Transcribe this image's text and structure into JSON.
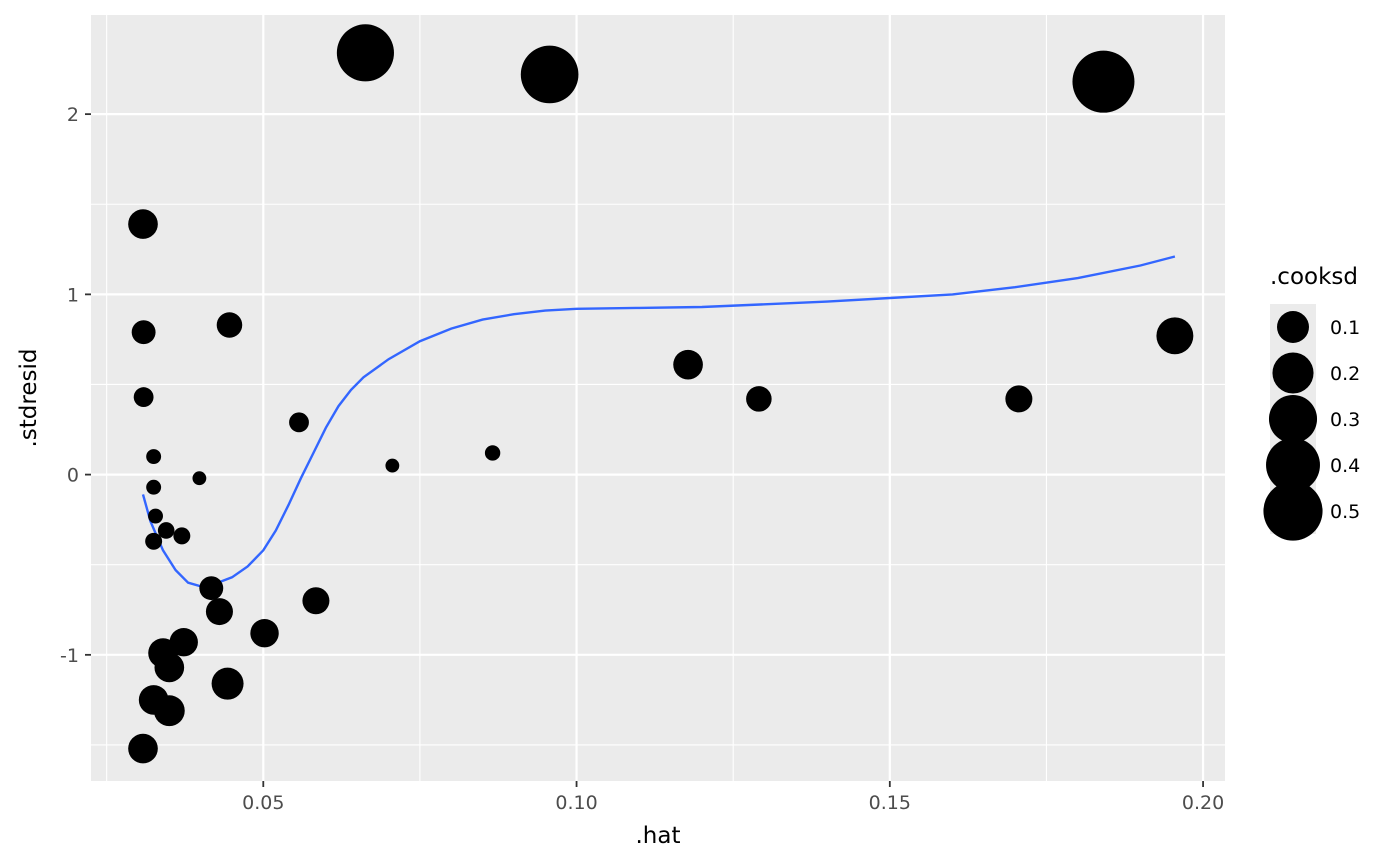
{
  "chart_data": {
    "type": "scatter",
    "xlabel": ".hat",
    "ylabel": ".stdresid",
    "xlim": [
      0.0225,
      0.2035
    ],
    "ylim": [
      -1.7,
      2.55
    ],
    "x_ticks": [
      0.05,
      0.1,
      0.15,
      0.2
    ],
    "x_tick_labels": [
      "0.05",
      "0.10",
      "0.15",
      "0.20"
    ],
    "x_minor": [
      0.025,
      0.075,
      0.125,
      0.175
    ],
    "y_ticks": [
      -1,
      0,
      1,
      2
    ],
    "y_tick_labels": [
      "-1",
      "0",
      "1",
      "2"
    ],
    "y_minor": [
      -1.5,
      -0.5,
      0.5,
      1.5
    ],
    "grid": true,
    "size_legend": {
      "title": ".cooksd",
      "position": "right",
      "breaks": [
        0.1,
        0.2,
        0.3,
        0.4,
        0.5
      ],
      "labels": [
        "0.1",
        "0.2",
        "0.3",
        "0.4",
        "0.5"
      ]
    },
    "points": [
      {
        "x": 0.0663,
        "y": 2.34,
        "size": 0.46
      },
      {
        "x": 0.0957,
        "y": 2.22,
        "size": 0.47
      },
      {
        "x": 0.1841,
        "y": 2.18,
        "size": 0.56
      },
      {
        "x": 0.0308,
        "y": 1.39,
        "size": 0.08
      },
      {
        "x": 0.0309,
        "y": 0.79,
        "size": 0.04
      },
      {
        "x": 0.0446,
        "y": 0.83,
        "size": 0.05
      },
      {
        "x": 0.0309,
        "y": 0.43,
        "size": 0.02
      },
      {
        "x": 0.0557,
        "y": 0.29,
        "size": 0.02
      },
      {
        "x": 0.0325,
        "y": 0.1,
        "size": 0.005
      },
      {
        "x": 0.0325,
        "y": -0.07,
        "size": 0.005
      },
      {
        "x": 0.0398,
        "y": -0.02,
        "size": 0.003
      },
      {
        "x": 0.0706,
        "y": 0.05,
        "size": 0.003
      },
      {
        "x": 0.0866,
        "y": 0.12,
        "size": 0.006
      },
      {
        "x": 0.1178,
        "y": 0.61,
        "size": 0.08
      },
      {
        "x": 0.1291,
        "y": 0.42,
        "size": 0.05
      },
      {
        "x": 0.1706,
        "y": 0.42,
        "size": 0.06
      },
      {
        "x": 0.1955,
        "y": 0.77,
        "size": 0.15
      },
      {
        "x": 0.0328,
        "y": -0.23,
        "size": 0.005
      },
      {
        "x": 0.0345,
        "y": -0.31,
        "size": 0.009
      },
      {
        "x": 0.0325,
        "y": -0.37,
        "size": 0.01
      },
      {
        "x": 0.037,
        "y": -0.34,
        "size": 0.01
      },
      {
        "x": 0.0417,
        "y": -0.63,
        "size": 0.04
      },
      {
        "x": 0.043,
        "y": -0.76,
        "size": 0.06
      },
      {
        "x": 0.0584,
        "y": -0.7,
        "size": 0.06
      },
      {
        "x": 0.0502,
        "y": -0.88,
        "size": 0.07
      },
      {
        "x": 0.0373,
        "y": -0.93,
        "size": 0.07
      },
      {
        "x": 0.034,
        "y": -0.99,
        "size": 0.08
      },
      {
        "x": 0.035,
        "y": -1.07,
        "size": 0.08
      },
      {
        "x": 0.0443,
        "y": -1.16,
        "size": 0.1
      },
      {
        "x": 0.0325,
        "y": -1.25,
        "size": 0.08
      },
      {
        "x": 0.035,
        "y": -1.31,
        "size": 0.09
      },
      {
        "x": 0.0308,
        "y": -1.52,
        "size": 0.08
      }
    ],
    "smooth_line": {
      "color": "#3366FF",
      "points": [
        [
          0.0308,
          -0.11
        ],
        [
          0.032,
          -0.26
        ],
        [
          0.034,
          -0.42
        ],
        [
          0.036,
          -0.53
        ],
        [
          0.038,
          -0.6
        ],
        [
          0.04,
          -0.62
        ],
        [
          0.042,
          -0.61
        ],
        [
          0.045,
          -0.57
        ],
        [
          0.0475,
          -0.51
        ],
        [
          0.05,
          -0.42
        ],
        [
          0.052,
          -0.31
        ],
        [
          0.054,
          -0.17
        ],
        [
          0.056,
          -0.02
        ],
        [
          0.058,
          0.12
        ],
        [
          0.06,
          0.26
        ],
        [
          0.062,
          0.38
        ],
        [
          0.064,
          0.47
        ],
        [
          0.066,
          0.54
        ],
        [
          0.07,
          0.64
        ],
        [
          0.075,
          0.74
        ],
        [
          0.08,
          0.81
        ],
        [
          0.085,
          0.86
        ],
        [
          0.09,
          0.89
        ],
        [
          0.095,
          0.91
        ],
        [
          0.1,
          0.92
        ],
        [
          0.11,
          0.925
        ],
        [
          0.12,
          0.93
        ],
        [
          0.13,
          0.945
        ],
        [
          0.14,
          0.96
        ],
        [
          0.15,
          0.98
        ],
        [
          0.16,
          1.0
        ],
        [
          0.17,
          1.04
        ],
        [
          0.18,
          1.09
        ],
        [
          0.19,
          1.16
        ],
        [
          0.1955,
          1.21
        ]
      ]
    },
    "colors": {
      "panel": "#EBEBEB",
      "grid": "#FFFFFF",
      "points": "#000000",
      "smooth": "#3366FF"
    }
  }
}
